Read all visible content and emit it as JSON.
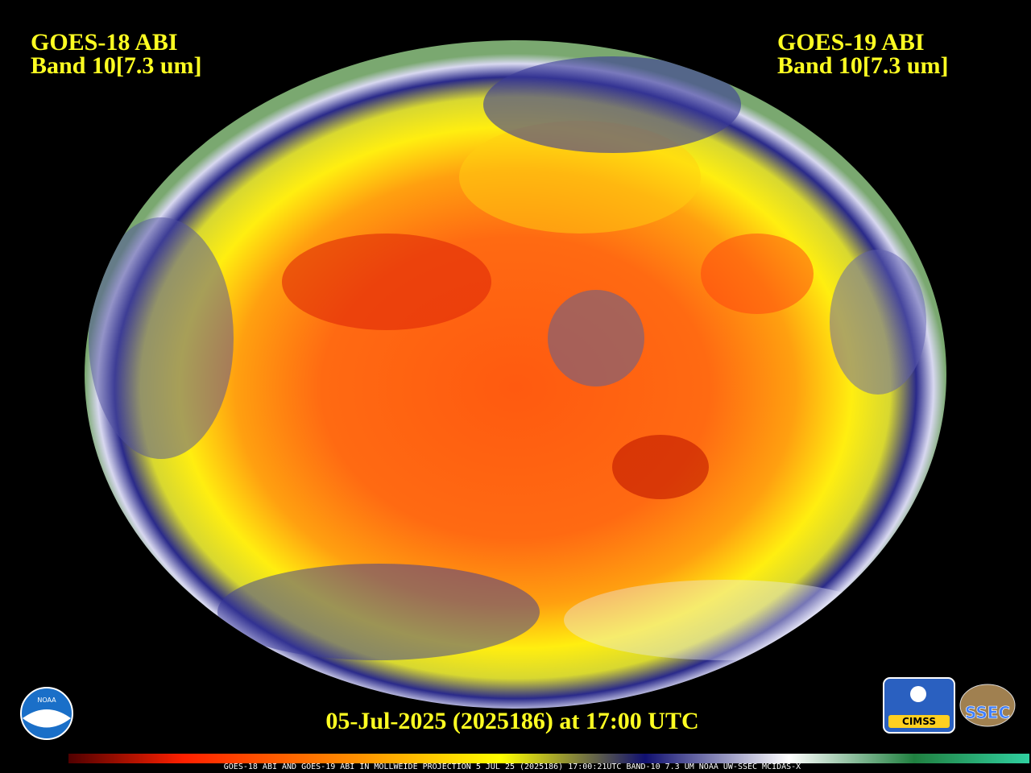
{
  "header": {
    "left": {
      "satellite": "GOES-18 ABI",
      "band": "Band 10[7.3 um]"
    },
    "right": {
      "satellite": "GOES-19 ABI",
      "band": "Band 10[7.3 um]"
    }
  },
  "timestamp": "05-Jul-2025 (2025186) at 17:00 UTC",
  "logos": {
    "noaa": "NOAA",
    "cimss": "CIMSS",
    "ssec": "SSEC"
  },
  "footer": "GOES-18 ABI AND GOES-19 ABI IN MOLLWEIDE PROJECTION 5 JUL 25 (2025186) 17:00:21UTC BAND-10 7.3 UM NOAA UW-SSEC MCIDAS-X"
}
